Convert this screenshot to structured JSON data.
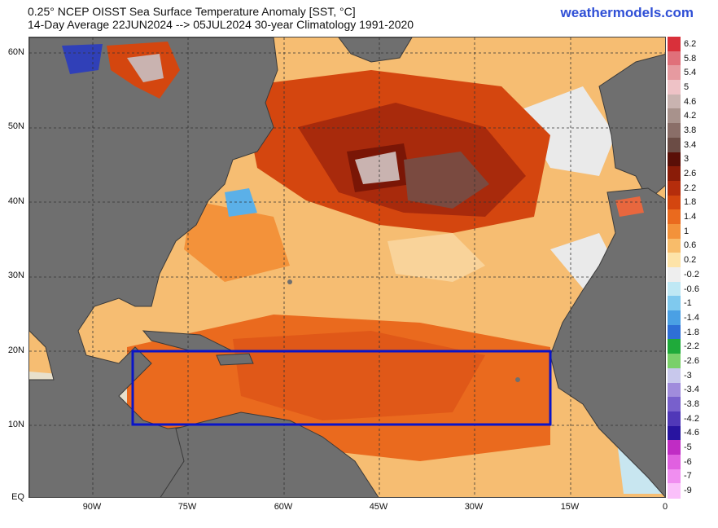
{
  "header": {
    "title_line1": "0.25° NCEP OISST Sea Surface Temperature Anomaly [SST, °C]",
    "title_line2": "14-Day Average 22JUN2024 --> 05JUL2024   30-year Climatology 1991-2020",
    "brand": "weathermodels.com"
  },
  "map": {
    "lat_labels": [
      "60N",
      "50N",
      "40N",
      "30N",
      "20N",
      "10N",
      "EQ"
    ],
    "lon_labels": [
      "90W",
      "75W",
      "60W",
      "45W",
      "30W",
      "15W",
      "0"
    ],
    "highlight_box_color": "#0a14c8",
    "land_color": "#6f6f6f"
  },
  "colorbar": {
    "labels": [
      "6.2",
      "5.8",
      "5.4",
      "5",
      "4.6",
      "4.2",
      "3.8",
      "3.4",
      "3",
      "2.6",
      "2.2",
      "1.8",
      "1.4",
      "1",
      "0.6",
      "0.2",
      "-0.2",
      "-0.6",
      "-1",
      "-1.4",
      "-1.8",
      "-2.2",
      "-2.6",
      "-3",
      "-3.4",
      "-3.8",
      "-4.2",
      "-4.6",
      "-5",
      "-6",
      "-7",
      "-9"
    ],
    "colors": [
      "#d9303a",
      "#e0707a",
      "#e69aa0",
      "#eec2c6",
      "#c9b3b0",
      "#a8928c",
      "#8a6e68",
      "#6b4c45",
      "#5a0f07",
      "#8a1c08",
      "#b52d0c",
      "#d4460f",
      "#ea6a1e",
      "#f3923a",
      "#f8bc6a",
      "#fde3a8",
      "#eeeeee",
      "#bfe8f4",
      "#7fc9ee",
      "#4aa0e4",
      "#2e6fd6",
      "#1faa3a",
      "#7ad06a",
      "#c8c8ec",
      "#a08cdc",
      "#7860cc",
      "#5038b8",
      "#2814a0",
      "#c02cc4",
      "#e060e0",
      "#f08ef0",
      "#fac0fa"
    ]
  }
}
